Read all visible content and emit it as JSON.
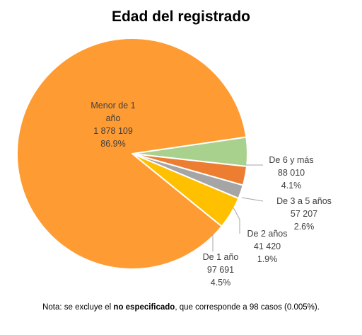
{
  "chart_data": {
    "type": "pie",
    "title": "Edad del registrado",
    "slices": [
      {
        "label_lines": [
          "De 6 y más"
        ],
        "value_text": "88 010",
        "percent_text": "4.1%",
        "value": 88010,
        "color": "#a9d18e"
      },
      {
        "label_lines": [
          "De 3 a 5 años"
        ],
        "value_text": "57 207",
        "percent_text": "2.6%",
        "value": 57207,
        "color": "#ed7d31"
      },
      {
        "label_lines": [
          "De 2 años"
        ],
        "value_text": "41 420",
        "percent_text": "1.9%",
        "value": 41420,
        "color": "#a5a5a5"
      },
      {
        "label_lines": [
          "De 1 año"
        ],
        "value_text": "97 691",
        "percent_text": "4.5%",
        "value": 97691,
        "color": "#ffc000"
      },
      {
        "label_lines": [
          "Menor de 1",
          "año"
        ],
        "value_text": "1 878 109",
        "percent_text": "86.9%",
        "value": 1878109,
        "color": "#ff9b33"
      }
    ]
  },
  "note": {
    "prefix": "Nota: se excluye el ",
    "bold": "no especificado",
    "suffix": ", que corresponde a 98 casos (0.005%)."
  }
}
